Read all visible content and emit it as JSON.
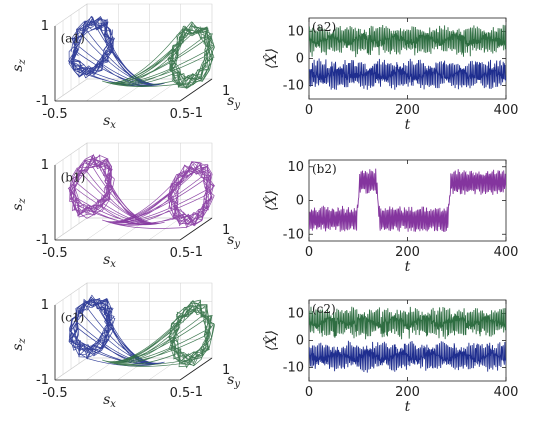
{
  "colors": {
    "blue": "#1f2e8f",
    "green": "#2f6e42",
    "purple": "#84359e"
  },
  "chart_data": [
    {
      "type": "line3d",
      "panel_label": "(a1)",
      "xlabel": "s_x",
      "ylabel": "s_y",
      "zlabel": "s_z",
      "x_ticks": [
        "-0.5",
        "0.5"
      ],
      "y_ticks": [
        "1",
        "-1"
      ],
      "z_ticks": [
        "1",
        "-1"
      ],
      "series": [
        {
          "color": "#1f2e8f",
          "lobe": "left"
        },
        {
          "color": "#2f6e42",
          "lobe": "right"
        }
      ]
    },
    {
      "type": "line",
      "panel_label": "(a2)",
      "xlabel": "t",
      "ylabel": "⟨X̂⟩",
      "xlim": [
        0,
        400
      ],
      "ylim": [
        -15,
        15
      ],
      "x_ticks": [
        "0",
        "200",
        "400"
      ],
      "y_ticks": [
        "10",
        "0",
        "-10"
      ],
      "series": [
        {
          "color": "#2f6e42",
          "mean": 7,
          "amp": 5
        },
        {
          "color": "#1f2e8f",
          "mean": -6,
          "amp": 5
        }
      ]
    },
    {
      "type": "line3d",
      "panel_label": "(b1)",
      "xlabel": "s_x",
      "ylabel": "s_y",
      "zlabel": "s_z",
      "x_ticks": [
        "-0.5",
        "0.5"
      ],
      "y_ticks": [
        "1",
        "-1"
      ],
      "z_ticks": [
        "1",
        "-1"
      ],
      "series": [
        {
          "color": "#84359e",
          "lobe": "both"
        }
      ]
    },
    {
      "type": "line",
      "panel_label": "(b2)",
      "xlabel": "t",
      "ylabel": "⟨X̂⟩",
      "xlim": [
        0,
        400
      ],
      "ylim": [
        -12,
        12
      ],
      "x_ticks": [
        "0",
        "200",
        "400"
      ],
      "y_ticks": [
        "10",
        "0",
        "-10"
      ],
      "series": [
        {
          "color": "#84359e",
          "switch_times": [
            0,
            100,
            140,
            285,
            400
          ],
          "levels": [
            -1,
            1,
            -1,
            1
          ]
        }
      ]
    },
    {
      "type": "line3d",
      "panel_label": "(c1)",
      "xlabel": "s_x",
      "ylabel": "s_y",
      "zlabel": "s_z",
      "x_ticks": [
        "-0.5",
        "0.5"
      ],
      "y_ticks": [
        "1",
        "-1"
      ],
      "z_ticks": [
        "1",
        "-1"
      ],
      "series": [
        {
          "color": "#1f2e8f",
          "lobe": "left"
        },
        {
          "color": "#2f6e42",
          "lobe": "right"
        }
      ]
    },
    {
      "type": "line",
      "panel_label": "(c2)",
      "xlabel": "t",
      "ylabel": "⟨X̂⟩",
      "xlim": [
        0,
        400
      ],
      "ylim": [
        -15,
        15
      ],
      "x_ticks": [
        "0",
        "200",
        "400"
      ],
      "y_ticks": [
        "10",
        "0",
        "-10"
      ],
      "series": [
        {
          "color": "#2f6e42",
          "mean": 7,
          "amp": 5
        },
        {
          "color": "#1f2e8f",
          "mean": -6,
          "amp": 5
        }
      ]
    }
  ]
}
